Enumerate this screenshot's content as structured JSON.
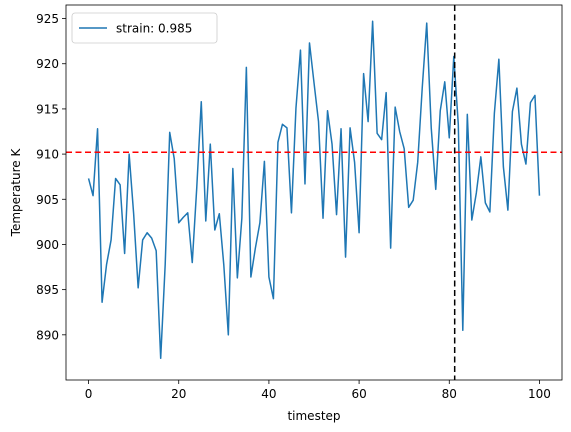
{
  "chart_data": {
    "type": "line",
    "xlabel": "timestep",
    "ylabel": "Temperature K",
    "xlim": [
      -5,
      105
    ],
    "ylim": [
      885,
      926.5
    ],
    "xticks": [
      0,
      20,
      40,
      60,
      80,
      100
    ],
    "yticks": [
      890,
      895,
      900,
      905,
      910,
      915,
      920,
      925
    ],
    "legend_position": "top-left",
    "grid": false,
    "series": [
      {
        "name": "strain: 0.985",
        "color": "#1f77b4",
        "x": [
          0,
          1,
          2,
          3,
          4,
          5,
          6,
          7,
          8,
          9,
          10,
          11,
          12,
          13,
          14,
          15,
          16,
          17,
          18,
          19,
          20,
          21,
          22,
          23,
          24,
          25,
          26,
          27,
          28,
          29,
          30,
          31,
          32,
          33,
          34,
          35,
          36,
          37,
          38,
          39,
          40,
          41,
          42,
          43,
          44,
          45,
          46,
          47,
          48,
          49,
          50,
          51,
          52,
          53,
          54,
          55,
          56,
          57,
          58,
          59,
          60,
          61,
          62,
          63,
          64,
          65,
          66,
          67,
          68,
          69,
          70,
          71,
          72,
          73,
          74,
          75,
          76,
          77,
          78,
          79,
          80,
          81,
          82,
          83,
          84,
          85,
          86,
          87,
          88,
          89,
          90,
          91,
          92,
          93,
          94,
          95,
          96,
          97,
          98,
          99,
          100
        ],
        "values": [
          907.3,
          905.4,
          912.8,
          893.6,
          897.8,
          900.5,
          907.3,
          906.6,
          899.0,
          910.0,
          903.4,
          895.2,
          900.5,
          901.3,
          900.7,
          899.3,
          887.4,
          897.8,
          912.4,
          909.5,
          902.4,
          903.0,
          903.5,
          898.0,
          906.3,
          915.8,
          902.6,
          911.1,
          901.6,
          903.4,
          897.7,
          890.0,
          908.4,
          896.3,
          902.9,
          919.6,
          896.4,
          899.6,
          902.4,
          909.2,
          896.4,
          894.0,
          911.3,
          913.3,
          912.9,
          903.5,
          915.1,
          921.5,
          906.7,
          922.3,
          917.9,
          913.6,
          902.9,
          914.8,
          911.1,
          903.3,
          912.8,
          898.6,
          912.9,
          909.1,
          901.3,
          918.9,
          913.6,
          924.7,
          912.3,
          911.6,
          916.8,
          899.6,
          915.2,
          912.5,
          910.6,
          904.1,
          904.9,
          909.1,
          917.3,
          924.5,
          912.9,
          906.1,
          914.8,
          918.0,
          911.8,
          920.8,
          913.3,
          890.5,
          914.4,
          902.7,
          905.7,
          909.7,
          904.6,
          903.6,
          914.5,
          920.5,
          908.6,
          903.8,
          914.7,
          917.3,
          911.1,
          908.9,
          915.7,
          916.5,
          905.4
        ]
      }
    ],
    "reference_lines": [
      {
        "orientation": "horizontal",
        "value": 910.2,
        "color": "#ff0000",
        "style": "dashed"
      },
      {
        "orientation": "vertical",
        "value": 81.2,
        "color": "#000000",
        "style": "dashed"
      }
    ]
  }
}
